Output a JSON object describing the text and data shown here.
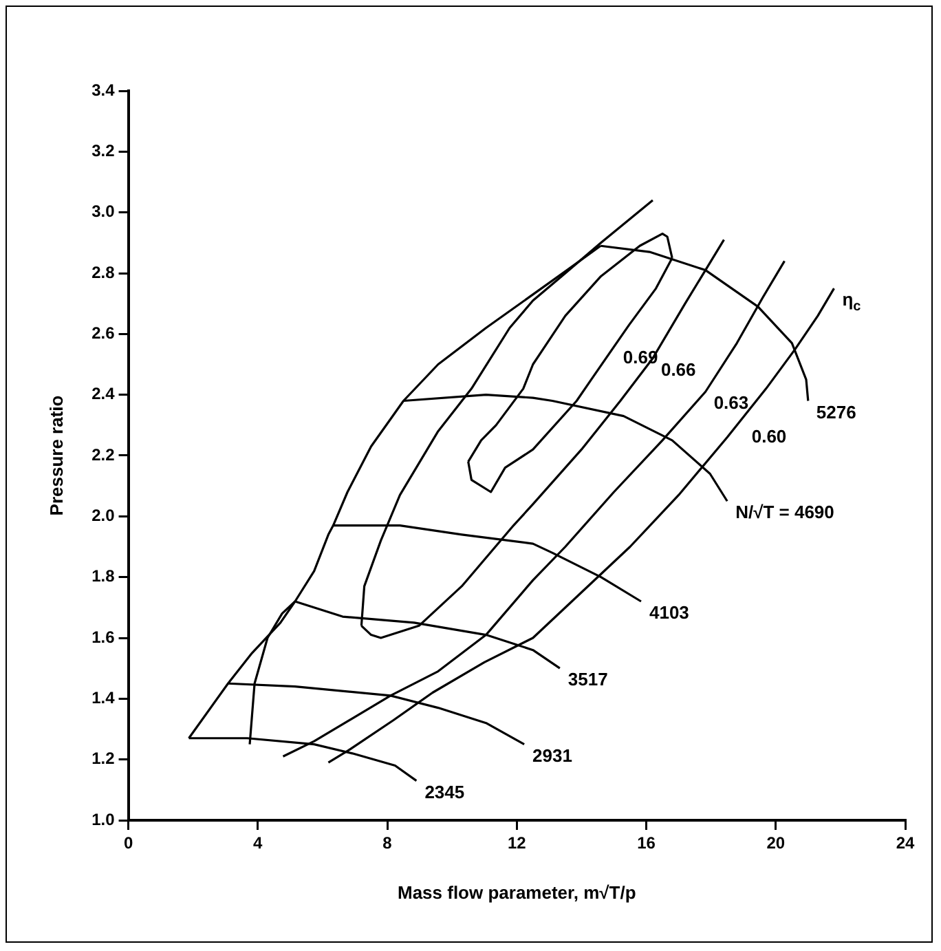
{
  "chart_data": {
    "type": "line",
    "xlabel": "Mass flow parameter, m√T/p",
    "ylabel": "Pressure ratio",
    "xlim": [
      0,
      24
    ],
    "xticks": [
      0,
      4,
      8,
      12,
      16,
      20,
      24
    ],
    "ylim": [
      1,
      3.4
    ],
    "yticks": [
      {
        "value": 1,
        "label": "1.0"
      },
      1.2,
      1.4,
      1.6,
      1.8,
      {
        "value": 2,
        "label": "2.0"
      },
      2.2,
      2.4,
      2.6,
      2.8,
      {
        "value": 3,
        "label": "3.0"
      },
      3.2,
      3.4
    ],
    "grid": false,
    "legend": false,
    "marker": "none",
    "line_style": "solid",
    "series": [
      {
        "color": "#000000",
        "x": [
          1.87,
          3.08,
          3.82,
          4.7,
          5.15,
          5.74,
          6.18,
          6.33,
          6.77,
          7.5,
          8.5,
          9.57,
          11.05,
          12.5,
          13.55,
          14.59
        ],
        "values": [
          1.27,
          1.45,
          1.55,
          1.65,
          1.72,
          1.82,
          1.94,
          1.97,
          2.08,
          2.23,
          2.38,
          2.5,
          2.62,
          2.73,
          2.81,
          2.89
        ]
      },
      {
        "color": "#000000",
        "x": [
          10.5,
          10.9,
          11.36,
          12.2,
          12.5,
          13.5,
          14.6,
          15.8,
          16.5,
          16.65,
          16.8
        ],
        "values": [
          2.18,
          2.25,
          2.3,
          2.42,
          2.5,
          2.66,
          2.79,
          2.89,
          2.93,
          2.92,
          2.85
        ]
      },
      {
        "color": "#000000",
        "x": [
          10.5,
          10.6,
          11.2,
          11.64,
          12.5,
          13.85,
          14.3,
          15.47,
          16.3,
          16.8
        ],
        "values": [
          2.18,
          2.12,
          2.08,
          2.16,
          2.22,
          2.38,
          2.45,
          2.63,
          2.75,
          2.85
        ]
      },
      {
        "color": "#000000",
        "x": [
          7.2,
          7.29,
          7.8,
          8.39,
          9.57,
          10.6,
          11.78,
          12.5,
          13.5,
          14.6,
          16.2
        ],
        "values": [
          1.64,
          1.77,
          1.92,
          2.07,
          2.28,
          2.42,
          2.62,
          2.71,
          2.8,
          2.9,
          3.04
        ]
      },
      {
        "color": "#000000",
        "x": [
          7.2,
          7.5,
          7.8,
          8.98,
          10.3,
          11.9,
          12.5,
          14,
          15.2,
          16.2,
          17.2,
          18.4
        ],
        "values": [
          1.64,
          1.61,
          1.6,
          1.64,
          1.77,
          1.97,
          2.04,
          2.22,
          2.38,
          2.52,
          2.7,
          2.91
        ]
      },
      {
        "color": "#000000",
        "x": [
          4.78,
          5.74,
          8.1,
          9.57,
          11.05,
          12.5,
          13.5,
          15,
          16.5,
          17.83,
          18.8,
          19.6,
          20.27
        ],
        "values": [
          1.21,
          1.26,
          1.41,
          1.49,
          1.61,
          1.79,
          1.9,
          2.08,
          2.25,
          2.41,
          2.57,
          2.72,
          2.84
        ]
      },
      {
        "color": "#000000",
        "x": [
          6.18,
          6.8,
          8.2,
          9.4,
          11,
          12.5,
          14,
          15.5,
          17,
          18.5,
          19.7,
          20.6,
          21.3,
          21.8
        ],
        "values": [
          1.19,
          1.23,
          1.33,
          1.42,
          1.52,
          1.6,
          1.75,
          1.9,
          2.07,
          2.26,
          2.42,
          2.55,
          2.66,
          2.75
        ]
      },
      {
        "color": "#000000",
        "x": [
          3.75,
          3.9,
          4.3,
          4.75,
          5.15
        ],
        "values": [
          1.25,
          1.45,
          1.6,
          1.68,
          1.72
        ]
      },
      {
        "color": "#000000",
        "x": [
          1.87,
          3.67,
          5.74,
          6.92,
          8.24,
          8.9
        ],
        "values": [
          1.27,
          1.27,
          1.25,
          1.22,
          1.18,
          1.13
        ]
      },
      {
        "color": "#000000",
        "x": [
          3.08,
          5.15,
          8.1,
          9.57,
          11.05,
          12.23
        ],
        "values": [
          1.45,
          1.44,
          1.41,
          1.37,
          1.32,
          1.25
        ]
      },
      {
        "color": "#000000",
        "x": [
          5.15,
          6.62,
          8.83,
          11.05,
          12.5,
          13.33
        ],
        "values": [
          1.72,
          1.67,
          1.65,
          1.61,
          1.56,
          1.5
        ]
      },
      {
        "color": "#000000",
        "x": [
          6.33,
          8.39,
          10.3,
          12.5,
          13.1,
          14.6,
          15.84
        ],
        "values": [
          1.97,
          1.97,
          1.94,
          1.91,
          1.88,
          1.8,
          1.72
        ]
      },
      {
        "color": "#000000",
        "x": [
          8.5,
          11.05,
          12.5,
          13.1,
          15.3,
          16.8,
          17.97,
          18.5
        ],
        "values": [
          2.38,
          2.4,
          2.39,
          2.38,
          2.33,
          2.25,
          2.14,
          2.05
        ]
      },
      {
        "color": "#000000",
        "x": [
          14.59,
          16.1,
          17.83,
          19.45,
          20.5,
          20.94,
          21.0
        ],
        "values": [
          2.89,
          2.87,
          2.81,
          2.69,
          2.57,
          2.45,
          2.38
        ]
      }
    ],
    "annotations": [
      {
        "text": "0.69",
        "x": 15.03,
        "y": 2.56
      },
      {
        "text": "0.66",
        "x": 16.2,
        "y": 2.52
      },
      {
        "text": "0.63",
        "x": 17.83,
        "y": 2.41
      },
      {
        "text": "0.60",
        "x": 19.0,
        "y": 2.3
      },
      {
        "text": "η$_{c}$",
        "x": 21.8,
        "y": 2.75
      },
      {
        "text": "5276",
        "x": 21.0,
        "y": 2.38
      },
      {
        "text": "N/√T = 4690",
        "x": 18.5,
        "y": 2.05
      },
      {
        "text": "4103",
        "x": 15.84,
        "y": 1.72
      },
      {
        "text": "3517",
        "x": 13.33,
        "y": 1.5
      },
      {
        "text": "2931",
        "x": 12.23,
        "y": 1.25
      },
      {
        "text": "2345",
        "x": 8.9,
        "y": 1.13
      }
    ]
  }
}
